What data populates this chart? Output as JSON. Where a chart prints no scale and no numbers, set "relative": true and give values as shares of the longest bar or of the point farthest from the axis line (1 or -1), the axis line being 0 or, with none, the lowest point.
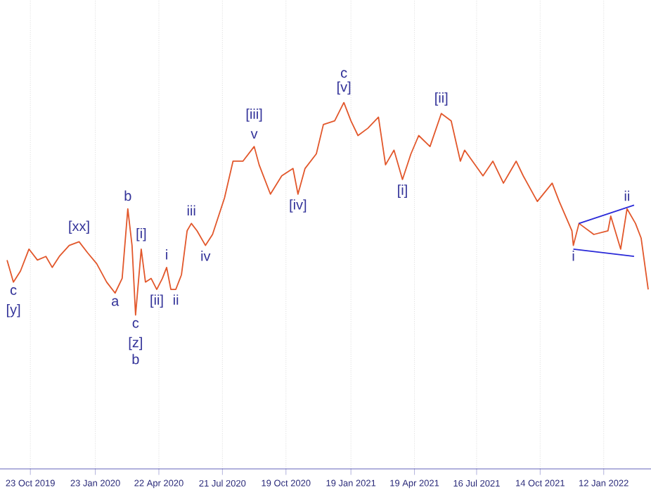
{
  "chart_data": {
    "type": "line",
    "relative": true,
    "grid": true,
    "xlim": [
      "2019-09-10",
      "2022-03-20"
    ],
    "xticks": [
      {
        "value": "2019-10-23",
        "label": "23 Oct 2019"
      },
      {
        "value": "2020-01-23",
        "label": "23 Jan 2020"
      },
      {
        "value": "2020-04-22",
        "label": "22 Apr 2020"
      },
      {
        "value": "2020-07-21",
        "label": "21 Jul 2020"
      },
      {
        "value": "2020-10-19",
        "label": "19 Oct 2020"
      },
      {
        "value": "2021-01-19",
        "label": "19 Jan 2021"
      },
      {
        "value": "2021-04-19",
        "label": "19 Apr 2021"
      },
      {
        "value": "2021-07-16",
        "label": "16 Jul 2021"
      },
      {
        "value": "2021-10-14",
        "label": "14 Oct 2021"
      },
      {
        "value": "2022-01-12",
        "label": "12 Jan 2022"
      }
    ],
    "series": [
      {
        "color": "#e2572b",
        "x": [
          "2019-09-20",
          "2019-09-29",
          "2019-10-09",
          "2019-10-21",
          "2019-11-02",
          "2019-11-14",
          "2019-11-23",
          "2019-12-03",
          "2019-12-17",
          "2019-12-31",
          "2020-01-12",
          "2020-01-25",
          "2020-02-08",
          "2020-02-20",
          "2020-03-01",
          "2020-03-09",
          "2020-03-15",
          "2020-03-20",
          "2020-03-28",
          "2020-04-03",
          "2020-04-11",
          "2020-04-19",
          "2020-04-27",
          "2020-05-03",
          "2020-05-09",
          "2020-05-16",
          "2020-05-24",
          "2020-06-01",
          "2020-06-07",
          "2020-06-15",
          "2020-06-27",
          "2020-07-07",
          "2020-07-24",
          "2020-08-05",
          "2020-08-19",
          "2020-09-04",
          "2020-09-11",
          "2020-09-27",
          "2020-10-13",
          "2020-10-29",
          "2020-11-05",
          "2020-11-15",
          "2020-12-01",
          "2020-12-11",
          "2020-12-27",
          "2021-01-09",
          "2021-01-19",
          "2021-01-29",
          "2021-02-12",
          "2021-02-27",
          "2021-03-09",
          "2021-03-21",
          "2021-04-02",
          "2021-04-14",
          "2021-04-25",
          "2021-05-11",
          "2021-05-27",
          "2021-06-10",
          "2021-06-23",
          "2021-06-29",
          "2021-07-25",
          "2021-08-08",
          "2021-08-23",
          "2021-09-10",
          "2021-09-20",
          "2021-10-10",
          "2021-10-31",
          "2021-11-10",
          "2021-11-28",
          "2021-11-30",
          "2021-12-08",
          "2021-12-29",
          "2022-01-18",
          "2022-01-22",
          "2022-02-05",
          "2022-02-14",
          "2022-02-26",
          "2022-03-06",
          "2022-03-16"
        ],
        "values": [
          0.57,
          0.51,
          0.54,
          0.6,
          0.57,
          0.58,
          0.55,
          0.58,
          0.61,
          0.62,
          0.59,
          0.56,
          0.51,
          0.48,
          0.52,
          0.71,
          0.61,
          0.42,
          0.6,
          0.51,
          0.52,
          0.49,
          0.52,
          0.55,
          0.49,
          0.49,
          0.53,
          0.65,
          0.67,
          0.65,
          0.61,
          0.64,
          0.74,
          0.84,
          0.84,
          0.88,
          0.83,
          0.75,
          0.8,
          0.82,
          0.75,
          0.82,
          0.86,
          0.94,
          0.95,
          1.0,
          0.95,
          0.91,
          0.93,
          0.96,
          0.83,
          0.87,
          0.79,
          0.86,
          0.91,
          0.88,
          0.97,
          0.95,
          0.84,
          0.87,
          0.8,
          0.84,
          0.78,
          0.84,
          0.8,
          0.73,
          0.78,
          0.73,
          0.65,
          0.61,
          0.67,
          0.64,
          0.65,
          0.69,
          0.6,
          0.71,
          0.67,
          0.63,
          0.49
        ]
      },
      {
        "type": "line",
        "color": "#2a2ad8",
        "x": [
          "2021-12-08",
          "2022-02-24"
        ],
        "values": [
          0.67,
          0.72
        ]
      },
      {
        "type": "line",
        "color": "#2a2ad8",
        "x": [
          "2021-11-30",
          "2022-02-24"
        ],
        "values": [
          0.6,
          0.58
        ]
      }
    ],
    "annotations": [
      {
        "text": "c",
        "x": "2019-09-29",
        "y": 0.51
      },
      {
        "text": "[y]",
        "x": "2019-09-29",
        "y": 0.51
      },
      {
        "text": "[xx]",
        "x": "2019-12-31",
        "y": 0.62
      },
      {
        "text": "a",
        "x": "2020-02-20",
        "y": 0.48
      },
      {
        "text": "b",
        "x": "2020-03-09",
        "y": 0.71
      },
      {
        "text": "c",
        "x": "2020-03-20",
        "y": 0.42
      },
      {
        "text": "[z]",
        "x": "2020-03-20",
        "y": 0.42
      },
      {
        "text": "b",
        "x": "2020-03-20",
        "y": 0.42
      },
      {
        "text": "[i]",
        "x": "2020-03-28",
        "y": 0.6
      },
      {
        "text": "[ii]",
        "x": "2020-04-19",
        "y": 0.49
      },
      {
        "text": "i",
        "x": "2020-05-03",
        "y": 0.55
      },
      {
        "text": "ii",
        "x": "2020-05-16",
        "y": 0.49
      },
      {
        "text": "iii",
        "x": "2020-06-07",
        "y": 0.67
      },
      {
        "text": "iv",
        "x": "2020-06-27",
        "y": 0.61
      },
      {
        "text": "v",
        "x": "2020-09-04",
        "y": 0.88
      },
      {
        "text": "[iii]",
        "x": "2020-09-04",
        "y": 0.88
      },
      {
        "text": "[iv]",
        "x": "2020-11-05",
        "y": 0.75
      },
      {
        "text": "[v]",
        "x": "2021-01-09",
        "y": 1.0
      },
      {
        "text": "c",
        "x": "2021-01-09",
        "y": 1.0
      },
      {
        "text": "[i]",
        "x": "2021-04-02",
        "y": 0.79
      },
      {
        "text": "[ii]",
        "x": "2021-05-27",
        "y": 0.97
      },
      {
        "text": "i",
        "x": "2021-11-30",
        "y": 0.61
      },
      {
        "text": "ii",
        "x": "2022-02-14",
        "y": 0.71
      }
    ]
  }
}
